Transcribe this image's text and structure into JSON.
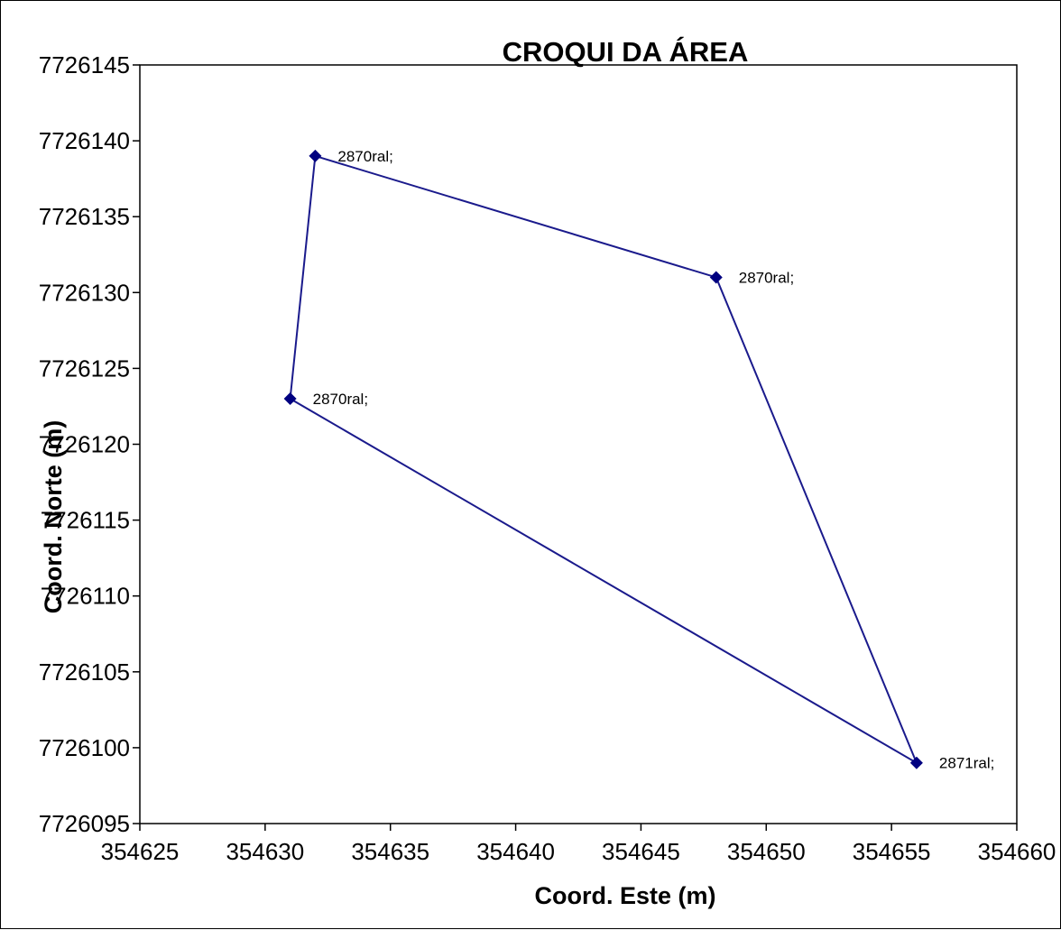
{
  "chart_data": {
    "type": "scatter",
    "title": "CROQUI DA ÁREA",
    "xlabel": "Coord. Este (m)",
    "ylabel": "Coord. Norte (m)",
    "xlim": [
      354625,
      354660
    ],
    "ylim": [
      7726095,
      7726145
    ],
    "x_ticks": [
      354625,
      354630,
      354635,
      354640,
      354645,
      354650,
      354655,
      354660
    ],
    "y_ticks": [
      7726095,
      7726100,
      7726105,
      7726110,
      7726115,
      7726120,
      7726125,
      7726130,
      7726135,
      7726140,
      7726145
    ],
    "x_tick_labels": [
      "354625",
      "354630",
      "354635",
      "354640",
      "354645",
      "354650",
      "354655",
      "354660"
    ],
    "y_tick_labels": [
      "7726095",
      "7726100",
      "7726105",
      "7726110",
      "7726115",
      "7726120",
      "7726125",
      "7726130",
      "7726135",
      "7726140",
      "7726145"
    ],
    "grid": false,
    "series": [
      {
        "closed": true,
        "color": "#1a1a8c",
        "marker_color": "#000080",
        "points": [
          {
            "x": 354632,
            "y": 7726139,
            "label": "2870ral;"
          },
          {
            "x": 354648,
            "y": 7726131,
            "label": "2870ral;"
          },
          {
            "x": 354656,
            "y": 7726099,
            "label": "2871ral;"
          },
          {
            "x": 354631,
            "y": 7726123,
            "label": "2870ral;"
          }
        ]
      }
    ]
  }
}
